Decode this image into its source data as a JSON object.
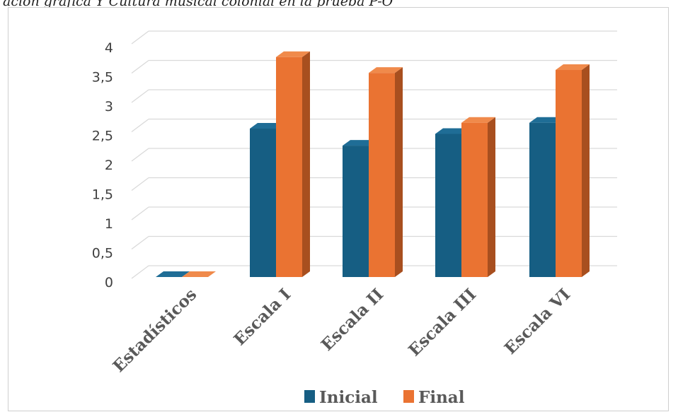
{
  "caption": "ación gráfica Y Cultura musical colonial en la prueba P-O",
  "colors": {
    "inicial": {
      "front": "#165e83",
      "top": "#1f6d96",
      "side": "#0e4464"
    },
    "final": {
      "front": "#ea7332",
      "top": "#f08a4b",
      "side": "#a84f1f"
    },
    "grid": "#d9d9d9",
    "axis_text": "#404040",
    "category_text": "#595959"
  },
  "chart_data": {
    "type": "bar",
    "variant": "3d-clustered-column",
    "categories": [
      "Estadísticos",
      "Escala I",
      "Escala II",
      "Escala III",
      "Escala VI"
    ],
    "series": [
      {
        "name": "Inicial",
        "values": [
          0,
          2.53,
          2.24,
          2.44,
          2.63
        ]
      },
      {
        "name": "Final",
        "values": [
          0,
          3.75,
          3.48,
          2.63,
          3.53
        ]
      }
    ],
    "ylim": [
      0,
      4
    ],
    "yticks": [
      "0",
      "0,5",
      "1",
      "1,5",
      "2",
      "2,5",
      "3",
      "3,5",
      "4"
    ],
    "grid": true,
    "legend_position": "bottom"
  }
}
